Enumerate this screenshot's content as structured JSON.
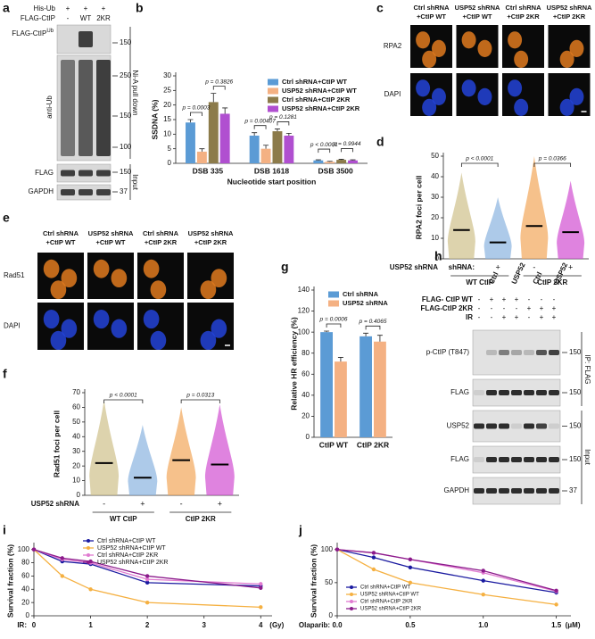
{
  "figure": {
    "a": {
      "letter": "a",
      "rows": [
        {
          "label": "His-Ub",
          "signs": [
            "+",
            "+",
            "+"
          ]
        },
        {
          "label": "FLAG-CtIP",
          "signs": [
            "-",
            "WT",
            "2KR"
          ]
        }
      ],
      "blots": [
        {
          "label": "FLAG-CtIP",
          "sup": "Ub",
          "markers": [
            150
          ]
        },
        {
          "label": "anti-Ub",
          "markers": [
            250,
            150,
            100
          ]
        },
        {
          "label": "FLAG",
          "markers": [
            150
          ]
        },
        {
          "label": "GAPDH",
          "markers": [
            37
          ]
        }
      ],
      "sides": [
        "Ni-A pull down",
        "Input"
      ]
    },
    "c": {
      "letter": "c",
      "columns": [
        [
          "Ctrl shRNA",
          "+CtIP WT"
        ],
        [
          "USP52 shRNA",
          "+CtIP WT"
        ],
        [
          "Ctrl shRNA",
          "+CtIP 2KR"
        ],
        [
          "USP52 shRNA",
          "+CtIP 2KR"
        ]
      ],
      "rows": [
        "RPA2",
        "DAPI"
      ]
    },
    "e": {
      "letter": "e",
      "columns": [
        [
          "Ctrl shRNA",
          "+CtIP WT"
        ],
        [
          "USP52  shRNA",
          "+CtIP WT"
        ],
        [
          "Ctrl shRNA",
          "+CtIP 2KR"
        ],
        [
          "USP52 shRNA",
          "+CtIP 2KR"
        ]
      ],
      "rows": [
        "Rad51",
        "DAPI"
      ]
    },
    "h": {
      "letter": "h",
      "header_label": "shRNA:",
      "shrna": [
        "Ctrl",
        "USP52",
        "Ctrl",
        "USP52"
      ],
      "rows": [
        {
          "label": "FLAG- CtIP WT",
          "signs": [
            "-",
            "+",
            "+",
            "+",
            "-",
            "-",
            "-"
          ]
        },
        {
          "label": "FLAG-CtIP 2KR",
          "signs": [
            "-",
            "-",
            "-",
            "-",
            "+",
            "+",
            "+"
          ]
        },
        {
          "label": "IR",
          "signs": [
            "-",
            "-",
            "+",
            "+",
            "-",
            "+",
            "+"
          ]
        }
      ],
      "blots": [
        {
          "label": "p-CtIP (T847)",
          "marker": 150
        },
        {
          "label": "FLAG",
          "marker": 150
        },
        {
          "label": "USP52",
          "marker": 150
        },
        {
          "label": "FLAG",
          "marker": 150
        },
        {
          "label": "GAPDH",
          "marker": 37
        }
      ],
      "sides": [
        "IP: FLAG",
        "Input"
      ]
    }
  },
  "chart_data": [
    {
      "type": "bar",
      "panel": "b",
      "ylabel": "SSDNA (%)",
      "xlabel": "Nucleotide start position",
      "categories": [
        "DSB 335",
        "DSB 1618",
        "DSB 3500"
      ],
      "series": [
        {
          "name": "Ctrl shRNA+CtIP WT",
          "color": "#5b9bd5",
          "values": [
            14,
            9.5,
            1
          ],
          "errors": [
            1,
            1,
            0.2
          ]
        },
        {
          "name": "USP52 shRNA+CtIP WT",
          "color": "#f4b183",
          "values": [
            4,
            5,
            0.5
          ],
          "errors": [
            1,
            1.2,
            0.2
          ]
        },
        {
          "name": "Ctrl shRNA+CtIP 2KR",
          "color": "#8c7b4a",
          "values": [
            21,
            11,
            1.2
          ],
          "errors": [
            3,
            0.8,
            0.2
          ]
        },
        {
          "name": "USP52 shRNA+CtIP 2KR",
          "color": "#b04fd0",
          "values": [
            17,
            9.5,
            1
          ],
          "errors": [
            2,
            0.8,
            0.2
          ]
        }
      ],
      "ylim": [
        0,
        30
      ],
      "yticks": [
        0,
        5,
        10,
        15,
        20,
        25,
        30
      ],
      "annotations": [
        "p = 0.0003",
        "p = 0.3826",
        "p = 0.00407",
        "p = 0.1281",
        "p < 0.0001",
        "p = 0.9944"
      ]
    },
    {
      "type": "dot",
      "panel": "d",
      "ylabel": "RPA2 foci per cell",
      "row_label": "USP52 shRNA",
      "categories": [
        "-",
        "+",
        "-",
        "+"
      ],
      "groups": [
        "WT CtIP",
        "CtIP 2KR"
      ],
      "colors": [
        "#cfc08a",
        "#8ab4e0",
        "#f2a65a",
        "#d24fd2"
      ],
      "values": [
        14,
        8,
        16,
        13
      ],
      "spread": [
        [
          0,
          42
        ],
        [
          0,
          30
        ],
        [
          0,
          50
        ],
        [
          0,
          38
        ]
      ],
      "ylim": [
        0,
        50
      ],
      "yticks": [
        0,
        10,
        20,
        30,
        40,
        50
      ],
      "annotations": [
        "p < 0.0001",
        "p = 0.0366"
      ]
    },
    {
      "type": "dot",
      "panel": "f",
      "ylabel": "Rad51 foci per cell",
      "row_label": "USP52 shRNA",
      "categories": [
        "-",
        "+",
        "-",
        "+"
      ],
      "groups": [
        "WT CtIP",
        "CtIP 2KR"
      ],
      "colors": [
        "#cfc08a",
        "#8ab4e0",
        "#f2a65a",
        "#d24fd2"
      ],
      "values": [
        22,
        12,
        24,
        21
      ],
      "spread": [
        [
          0,
          65
        ],
        [
          0,
          48
        ],
        [
          0,
          60
        ],
        [
          0,
          62
        ]
      ],
      "ylim": [
        0,
        70
      ],
      "yticks": [
        0,
        10,
        20,
        30,
        40,
        50,
        60,
        70
      ],
      "annotations": [
        "p < 0.0001",
        "p = 0.0313"
      ]
    },
    {
      "type": "bar",
      "panel": "g",
      "ylabel": "Relative HR efficiency (%)",
      "categories": [
        "CtIP WT",
        "CtIP 2KR"
      ],
      "series": [
        {
          "name": "Ctrl shRNA",
          "color": "#5b9bd5",
          "values": [
            100,
            96
          ],
          "errors": [
            1,
            3
          ]
        },
        {
          "name": "USP52 shRNA",
          "color": "#f4b183",
          "values": [
            72,
            91
          ],
          "errors": [
            4,
            6
          ]
        }
      ],
      "ylim": [
        0,
        140
      ],
      "yticks": [
        0,
        20,
        40,
        60,
        80,
        100,
        120,
        140
      ],
      "annotations": [
        "p = 0.0006",
        "p = 0.4065"
      ]
    },
    {
      "type": "line",
      "panel": "i",
      "ylabel": "Survival fraction (%)",
      "xlabel": "IR:",
      "xunit": "(Gy)",
      "x": [
        0,
        0.5,
        1,
        2,
        4
      ],
      "series": [
        {
          "name": "Ctrl shRNA+CtIP WT",
          "color": "#1a1aa0",
          "values": [
            100,
            82,
            78,
            50,
            45
          ]
        },
        {
          "name": "USP52 shRNA+CtIP WT",
          "color": "#f5b041",
          "values": [
            100,
            60,
            40,
            20,
            13
          ]
        },
        {
          "name": "Ctrl shRNA+CtIP 2KR",
          "color": "#e07ad0",
          "values": [
            100,
            85,
            80,
            55,
            48
          ]
        },
        {
          "name": "USP52 shRNA+CtIP 2KR",
          "color": "#8b1a8b",
          "values": [
            100,
            87,
            82,
            60,
            42
          ]
        }
      ],
      "xlim": [
        0,
        4.2
      ],
      "xticks": [
        0,
        1,
        2,
        3,
        4
      ],
      "ylim": [
        0,
        105
      ],
      "yticks": [
        0,
        20,
        40,
        60,
        80,
        100
      ],
      "legend": "top"
    },
    {
      "type": "line",
      "panel": "j",
      "ylabel": "Survival fraction (%)",
      "xlabel": "Olaparib:",
      "xunit": "(μM)",
      "x": [
        0,
        0.25,
        0.5,
        1,
        1.5
      ],
      "series": [
        {
          "name": "Ctrl shRNA+CtIP WT",
          "color": "#1a1aa0",
          "values": [
            100,
            88,
            73,
            53,
            35
          ]
        },
        {
          "name": "USP52 shRNA+CtIP WT",
          "color": "#f5b041",
          "values": [
            100,
            70,
            50,
            32,
            17
          ]
        },
        {
          "name": "Ctrl shRNA+CtIP 2KR",
          "color": "#e07ad0",
          "values": [
            100,
            95,
            85,
            65,
            37
          ]
        },
        {
          "name": "USP52 shRNA+CtIP 2KR",
          "color": "#8b1a8b",
          "values": [
            100,
            95,
            85,
            68,
            38
          ]
        }
      ],
      "xlim": [
        0,
        1.6
      ],
      "xticks": [
        {
          "value": 0,
          "label": "0.0"
        },
        0.5,
        {
          "value": 1,
          "label": "1.0"
        },
        1.5
      ],
      "ylim": [
        0,
        105
      ],
      "yticks": [
        0,
        50,
        100
      ],
      "legend": "lower left"
    }
  ]
}
